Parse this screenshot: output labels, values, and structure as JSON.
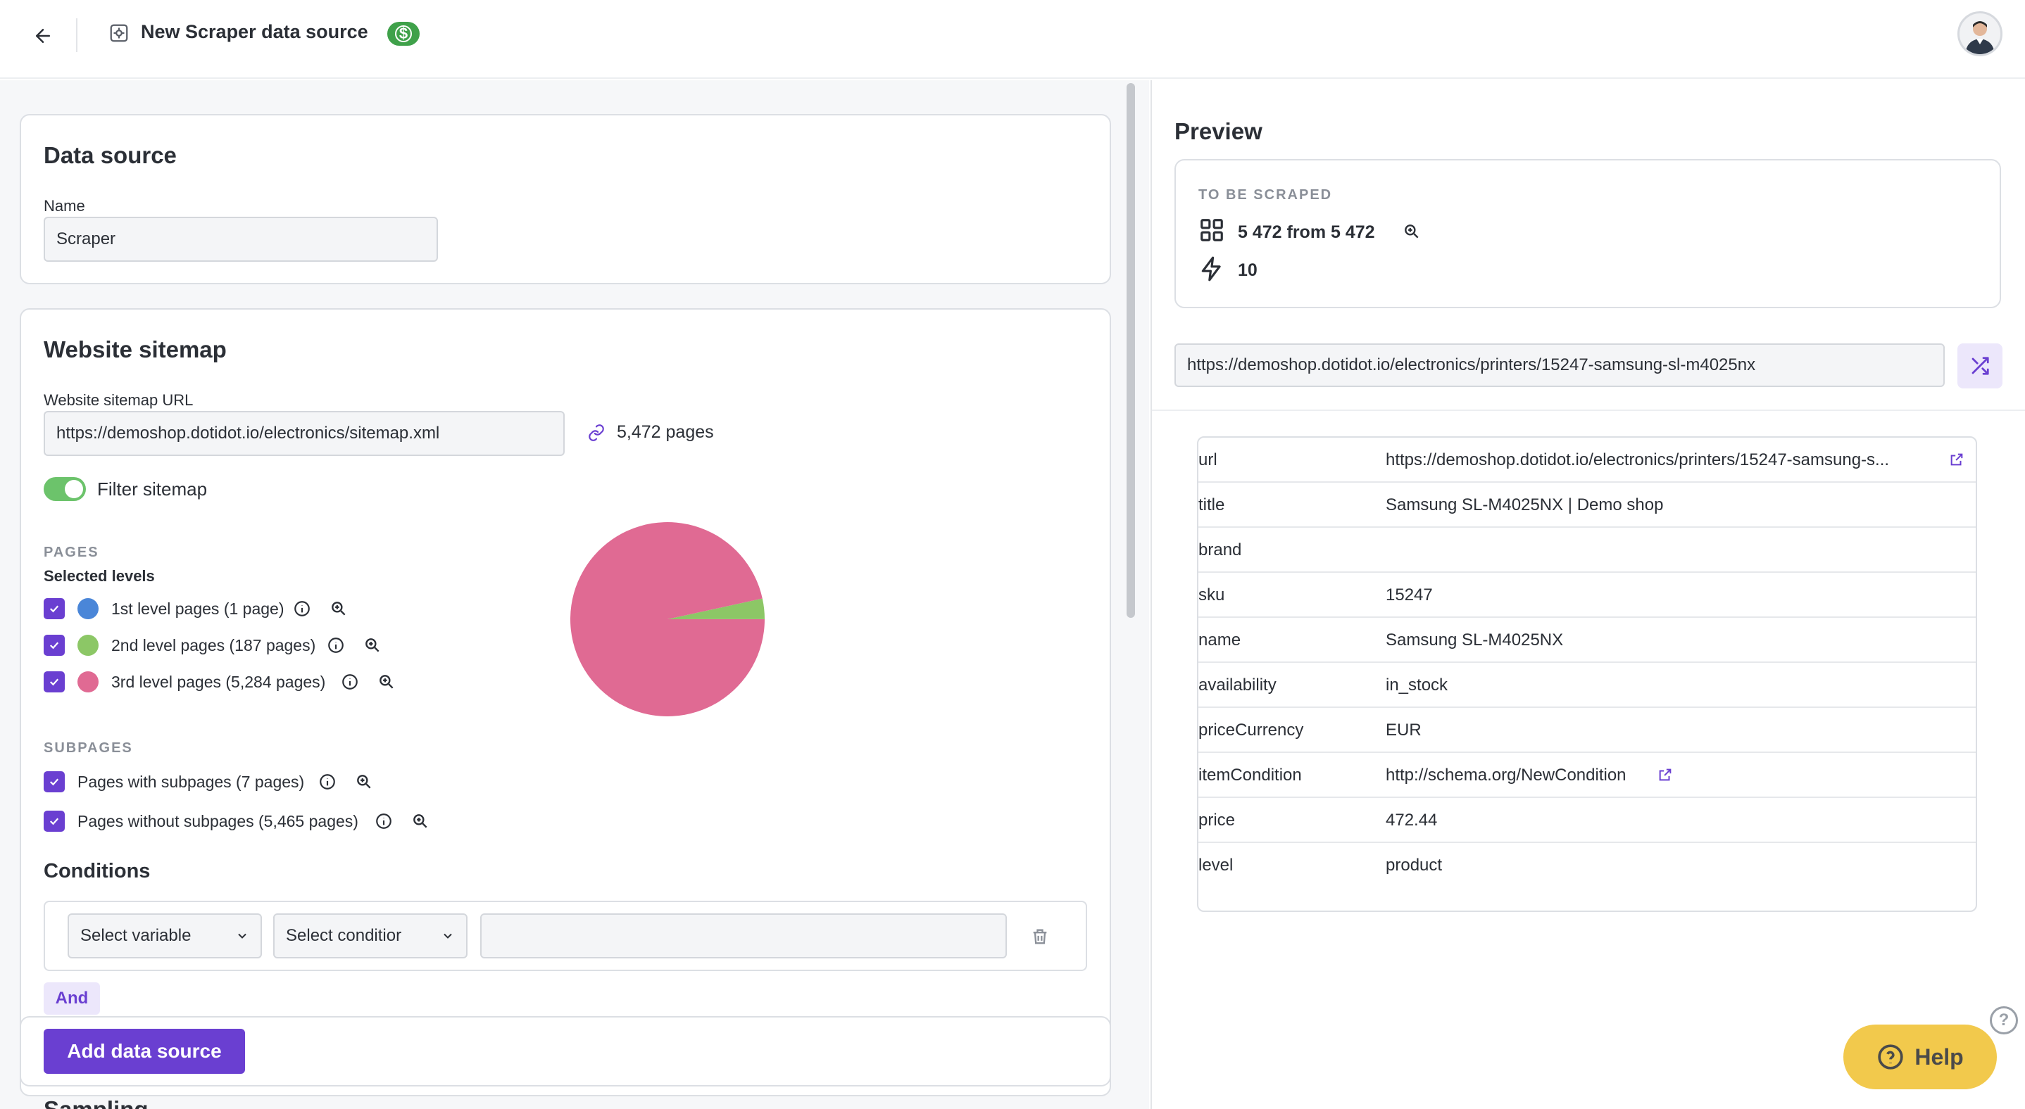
{
  "header": {
    "title": "New Scraper data source",
    "badge_symbol": "$",
    "badge_color": "#3fa14a"
  },
  "data_source": {
    "title": "Data source",
    "name_label": "Name",
    "name_value": "Scraper"
  },
  "sitemap": {
    "title": "Website sitemap",
    "url_label": "Website sitemap URL",
    "url_value": "https://demoshop.dotidot.io/electronics/sitemap.xml",
    "pages_link": "5,472 pages",
    "filter_label": "Filter sitemap",
    "filter_on": true,
    "pages_overline": "PAGES",
    "selected_levels_label": "Selected levels",
    "levels": [
      {
        "label": "1st level pages (1 page)",
        "color": "#4a86d8",
        "pages": 1,
        "checked": true
      },
      {
        "label": "2nd level pages (187 pages)",
        "color": "#8cc766",
        "pages": 187,
        "checked": true
      },
      {
        "label": "3rd level pages (5,284 pages)",
        "color": "#e06a93",
        "pages": 5284,
        "checked": true
      }
    ],
    "subpages_overline": "SUBPAGES",
    "subpages": [
      {
        "label": "Pages with subpages (7 pages)",
        "checked": true
      },
      {
        "label": "Pages without subpages (5,465 pages)",
        "checked": true
      }
    ],
    "conditions_title": "Conditions",
    "select_variable": "Select variable",
    "select_condition": "Select conditior",
    "condition_value": "",
    "and_label": "And"
  },
  "footer": {
    "add_button": "Add data source",
    "next_section_title": "Sampling"
  },
  "chart_data": {
    "type": "pie",
    "categories": [
      "1st level pages",
      "2nd level pages",
      "3rd level pages"
    ],
    "values": [
      1,
      187,
      5284
    ],
    "colors": [
      "#4a86d8",
      "#8cc766",
      "#e06a93"
    ]
  },
  "preview": {
    "title": "Preview",
    "to_be_scraped_label": "TO BE SCRAPED",
    "count_text": "5 472 from 5 472",
    "speed_text": "10",
    "url_value": "https://demoshop.dotidot.io/electronics/printers/15247-samsung-sl-m4025nx",
    "props": [
      {
        "key": "url",
        "value": "https://demoshop.dotidot.io/electronics/printers/15247-samsung-s...",
        "link": true
      },
      {
        "key": "title",
        "value": "Samsung SL-M4025NX | Demo shop",
        "link": false
      },
      {
        "key": "brand",
        "value": "",
        "link": false
      },
      {
        "key": "sku",
        "value": "15247",
        "link": false
      },
      {
        "key": "name",
        "value": "Samsung SL-M4025NX",
        "link": false
      },
      {
        "key": "availability",
        "value": "in_stock",
        "link": false
      },
      {
        "key": "priceCurrency",
        "value": "EUR",
        "link": false
      },
      {
        "key": "itemCondition",
        "value": "http://schema.org/NewCondition",
        "link": true
      },
      {
        "key": "price",
        "value": "472.44",
        "link": false
      },
      {
        "key": "level",
        "value": "product",
        "link": false
      }
    ]
  },
  "help": {
    "label": "Help",
    "corner_symbol": "?"
  }
}
